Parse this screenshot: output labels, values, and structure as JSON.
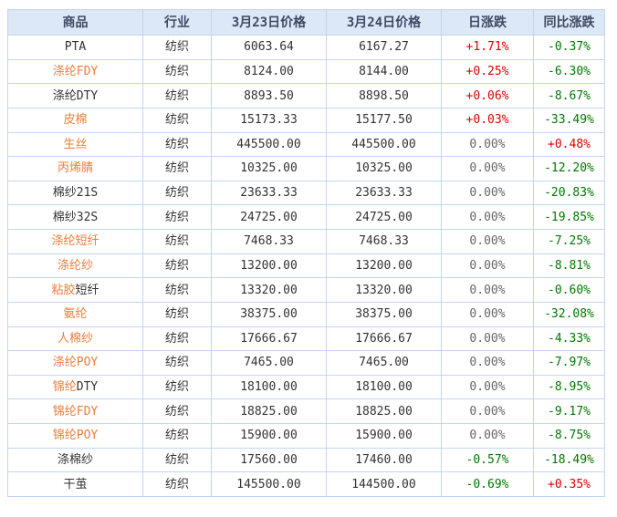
{
  "colors": {
    "page_bg": "#ffffff",
    "header_bg": "#dce7f7",
    "header_text": "#3f4a63",
    "grid_border": "#c3d5f0",
    "product_dark": "#333333",
    "link_orange": "#ef7c3a",
    "rise_red": "#dd0000",
    "fall_green": "#007700",
    "zero_gray": "#666666"
  },
  "table": {
    "columns": [
      {
        "key": "product",
        "label": "商品"
      },
      {
        "key": "industry",
        "label": "行业"
      },
      {
        "key": "price_mar23",
        "label": "3月23日价格"
      },
      {
        "key": "price_mar24",
        "label": "3月24日价格"
      },
      {
        "key": "day_change",
        "label": "日涨跌"
      },
      {
        "key": "yoy_change",
        "label": "同比涨跌"
      }
    ],
    "rows": [
      {
        "product": [
          {
            "text": "PTA",
            "tone": "dark"
          }
        ],
        "industry": "纺织",
        "price_mar23": "6063.64",
        "price_mar24": "6167.27",
        "day_change": {
          "text": "+1.71%",
          "tone": "rise"
        },
        "yoy_change": {
          "text": "-0.37%",
          "tone": "fall"
        }
      },
      {
        "product": [
          {
            "text": "涤纶FDY",
            "tone": "link"
          }
        ],
        "industry": "纺织",
        "price_mar23": "8124.00",
        "price_mar24": "8144.00",
        "day_change": {
          "text": "+0.25%",
          "tone": "rise"
        },
        "yoy_change": {
          "text": "-6.30%",
          "tone": "fall"
        }
      },
      {
        "product": [
          {
            "text": "涤纶DTY",
            "tone": "dark"
          }
        ],
        "industry": "纺织",
        "price_mar23": "8893.50",
        "price_mar24": "8898.50",
        "day_change": {
          "text": "+0.06%",
          "tone": "rise"
        },
        "yoy_change": {
          "text": "-8.67%",
          "tone": "fall"
        }
      },
      {
        "product": [
          {
            "text": "皮棉",
            "tone": "link"
          }
        ],
        "industry": "纺织",
        "price_mar23": "15173.33",
        "price_mar24": "15177.50",
        "day_change": {
          "text": "+0.03%",
          "tone": "rise"
        },
        "yoy_change": {
          "text": "-33.49%",
          "tone": "fall"
        }
      },
      {
        "product": [
          {
            "text": "生丝",
            "tone": "link"
          }
        ],
        "industry": "纺织",
        "price_mar23": "445500.00",
        "price_mar24": "445500.00",
        "day_change": {
          "text": "0.00%",
          "tone": "zero"
        },
        "yoy_change": {
          "text": "+0.48%",
          "tone": "rise"
        }
      },
      {
        "product": [
          {
            "text": "丙烯腈",
            "tone": "link"
          }
        ],
        "industry": "纺织",
        "price_mar23": "10325.00",
        "price_mar24": "10325.00",
        "day_change": {
          "text": "0.00%",
          "tone": "zero"
        },
        "yoy_change": {
          "text": "-12.20%",
          "tone": "fall"
        }
      },
      {
        "product": [
          {
            "text": "棉纱21S",
            "tone": "dark"
          }
        ],
        "industry": "纺织",
        "price_mar23": "23633.33",
        "price_mar24": "23633.33",
        "day_change": {
          "text": "0.00%",
          "tone": "zero"
        },
        "yoy_change": {
          "text": "-20.83%",
          "tone": "fall"
        }
      },
      {
        "product": [
          {
            "text": "棉纱32S",
            "tone": "dark"
          }
        ],
        "industry": "纺织",
        "price_mar23": "24725.00",
        "price_mar24": "24725.00",
        "day_change": {
          "text": "0.00%",
          "tone": "zero"
        },
        "yoy_change": {
          "text": "-19.85%",
          "tone": "fall"
        }
      },
      {
        "product": [
          {
            "text": "涤纶短纤",
            "tone": "link"
          }
        ],
        "industry": "纺织",
        "price_mar23": "7468.33",
        "price_mar24": "7468.33",
        "day_change": {
          "text": "0.00%",
          "tone": "zero"
        },
        "yoy_change": {
          "text": "-7.25%",
          "tone": "fall"
        }
      },
      {
        "product": [
          {
            "text": "涤纶纱",
            "tone": "link"
          }
        ],
        "industry": "纺织",
        "price_mar23": "13200.00",
        "price_mar24": "13200.00",
        "day_change": {
          "text": "0.00%",
          "tone": "zero"
        },
        "yoy_change": {
          "text": "-8.81%",
          "tone": "fall"
        }
      },
      {
        "product": [
          {
            "text": "粘胶",
            "tone": "link"
          },
          {
            "text": "短纤",
            "tone": "dark"
          }
        ],
        "industry": "纺织",
        "price_mar23": "13320.00",
        "price_mar24": "13320.00",
        "day_change": {
          "text": "0.00%",
          "tone": "zero"
        },
        "yoy_change": {
          "text": "-0.60%",
          "tone": "fall"
        }
      },
      {
        "product": [
          {
            "text": "氨纶",
            "tone": "link"
          }
        ],
        "industry": "纺织",
        "price_mar23": "38375.00",
        "price_mar24": "38375.00",
        "day_change": {
          "text": "0.00%",
          "tone": "zero"
        },
        "yoy_change": {
          "text": "-32.08%",
          "tone": "fall"
        }
      },
      {
        "product": [
          {
            "text": "人棉纱",
            "tone": "link"
          }
        ],
        "industry": "纺织",
        "price_mar23": "17666.67",
        "price_mar24": "17666.67",
        "day_change": {
          "text": "0.00%",
          "tone": "zero"
        },
        "yoy_change": {
          "text": "-4.33%",
          "tone": "fall"
        }
      },
      {
        "product": [
          {
            "text": "涤纶POY",
            "tone": "link"
          }
        ],
        "industry": "纺织",
        "price_mar23": "7465.00",
        "price_mar24": "7465.00",
        "day_change": {
          "text": "0.00%",
          "tone": "zero"
        },
        "yoy_change": {
          "text": "-7.97%",
          "tone": "fall"
        }
      },
      {
        "product": [
          {
            "text": "锦纶",
            "tone": "link"
          },
          {
            "text": "DTY",
            "tone": "dark"
          }
        ],
        "industry": "纺织",
        "price_mar23": "18100.00",
        "price_mar24": "18100.00",
        "day_change": {
          "text": "0.00%",
          "tone": "zero"
        },
        "yoy_change": {
          "text": "-8.95%",
          "tone": "fall"
        }
      },
      {
        "product": [
          {
            "text": "锦纶FDY",
            "tone": "link"
          }
        ],
        "industry": "纺织",
        "price_mar23": "18825.00",
        "price_mar24": "18825.00",
        "day_change": {
          "text": "0.00%",
          "tone": "zero"
        },
        "yoy_change": {
          "text": "-9.17%",
          "tone": "fall"
        }
      },
      {
        "product": [
          {
            "text": "锦纶POY",
            "tone": "link"
          }
        ],
        "industry": "纺织",
        "price_mar23": "15900.00",
        "price_mar24": "15900.00",
        "day_change": {
          "text": "0.00%",
          "tone": "zero"
        },
        "yoy_change": {
          "text": "-8.75%",
          "tone": "fall"
        }
      },
      {
        "product": [
          {
            "text": "涤棉纱",
            "tone": "dark"
          }
        ],
        "industry": "纺织",
        "price_mar23": "17560.00",
        "price_mar24": "17460.00",
        "day_change": {
          "text": "-0.57%",
          "tone": "fall"
        },
        "yoy_change": {
          "text": "-18.49%",
          "tone": "fall"
        }
      },
      {
        "product": [
          {
            "text": "干茧",
            "tone": "dark"
          }
        ],
        "industry": "纺织",
        "price_mar23": "145500.00",
        "price_mar24": "144500.00",
        "day_change": {
          "text": "-0.69%",
          "tone": "fall"
        },
        "yoy_change": {
          "text": "+0.35%",
          "tone": "rise"
        }
      }
    ]
  }
}
